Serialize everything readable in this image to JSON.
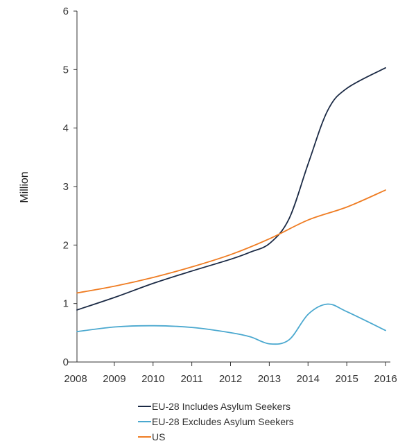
{
  "chart_data": {
    "type": "line",
    "ylabel": "Million",
    "xlabel": "",
    "title": "",
    "x_ticks": [
      "2008",
      "2009",
      "2010",
      "2011",
      "2012",
      "2013",
      "2014",
      "2015",
      "2016"
    ],
    "y_ticks": [
      "0",
      "1",
      "2",
      "3",
      "4",
      "5",
      "6"
    ],
    "ylim": [
      0,
      6
    ],
    "xlim": [
      2008,
      2016
    ],
    "grid": false,
    "legend_position": "bottom",
    "series": [
      {
        "name": "EU-28 Includes Asylum Seekers",
        "color": "#1b2a45",
        "x": [
          2008,
          2009,
          2010,
          2011,
          2012,
          2012.5,
          2013,
          2013.5,
          2014,
          2014.5,
          2015,
          2016
        ],
        "values": [
          0.89,
          1.11,
          1.35,
          1.56,
          1.76,
          1.88,
          2.03,
          2.45,
          3.4,
          4.3,
          4.68,
          5.03
        ]
      },
      {
        "name": "EU-28 Excludes Asylum Seekers",
        "color": "#4aa8cf",
        "x": [
          2008,
          2009,
          2010,
          2011,
          2012,
          2012.5,
          2013,
          2013.5,
          2014,
          2014.5,
          2015,
          2016
        ],
        "values": [
          0.52,
          0.6,
          0.62,
          0.59,
          0.5,
          0.43,
          0.31,
          0.38,
          0.82,
          0.99,
          0.86,
          0.54
        ]
      },
      {
        "name": "US",
        "color": "#ef7c22",
        "x": [
          2008,
          2009,
          2010,
          2011,
          2012,
          2013,
          2014,
          2015,
          2016
        ],
        "values": [
          1.18,
          1.3,
          1.45,
          1.63,
          1.84,
          2.11,
          2.43,
          2.65,
          2.94
        ]
      }
    ]
  }
}
